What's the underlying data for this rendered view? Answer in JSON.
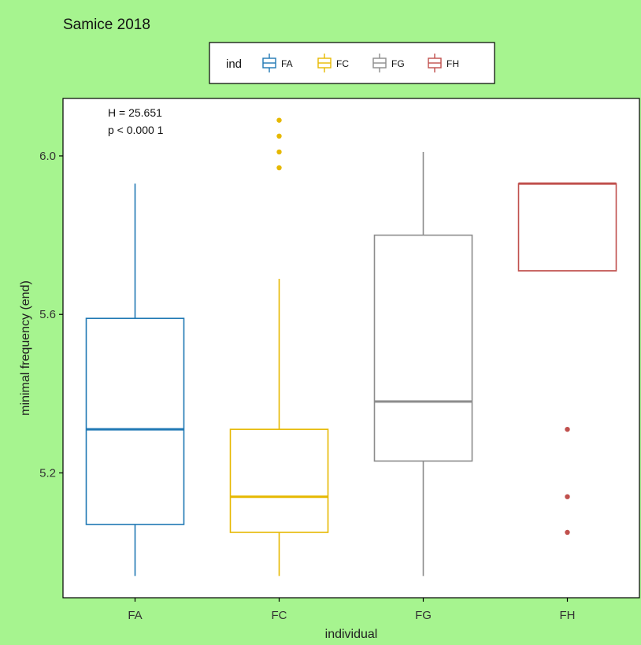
{
  "colors": {
    "background": "#a6f48f",
    "panel": "#ffffff",
    "frame": "#000000",
    "FA": "#1f78b4",
    "FC": "#e6b800",
    "FG": "#8c8c8c",
    "FH": "#c0504d"
  },
  "chart_data": {
    "type": "box",
    "title": "Samice 2018",
    "xlabel": "individual",
    "ylabel": "minimal frequency (end)",
    "ylim": [
      4.885,
      6.145
    ],
    "yticks": [
      5.2,
      5.6,
      6.0
    ],
    "ytick_labels": [
      "5.2",
      "5.6",
      "6.0"
    ],
    "categories": [
      "FA",
      "FC",
      "FG",
      "FH"
    ],
    "grid": false,
    "legend": {
      "title": "ind",
      "position": "top",
      "entries": [
        "FA",
        "FC",
        "FG",
        "FH"
      ]
    },
    "annotation": [
      "H = 25.651",
      "p < 0.000 1"
    ],
    "boxes": [
      {
        "name": "FA",
        "whisker_low": 4.94,
        "q1": 5.07,
        "median": 5.31,
        "q3": 5.59,
        "whisker_high": 5.93,
        "outliers": []
      },
      {
        "name": "FC",
        "whisker_low": 4.94,
        "q1": 5.05,
        "median": 5.14,
        "q3": 5.31,
        "whisker_high": 5.69,
        "outliers": [
          5.97,
          6.01,
          6.05,
          6.09
        ]
      },
      {
        "name": "FG",
        "whisker_low": 4.94,
        "q1": 5.23,
        "median": 5.38,
        "q3": 5.8,
        "whisker_high": 6.01,
        "outliers": []
      },
      {
        "name": "FH",
        "whisker_low": 5.71,
        "q1": 5.71,
        "median": 5.93,
        "q3": 5.93,
        "whisker_high": 5.93,
        "outliers": [
          5.05,
          5.14,
          5.31
        ]
      }
    ]
  }
}
